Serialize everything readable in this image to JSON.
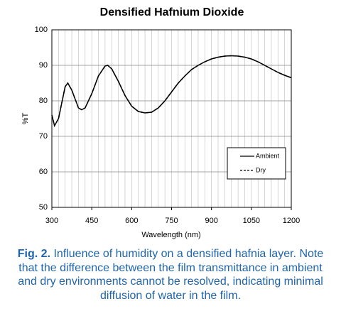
{
  "chart_data": {
    "type": "line",
    "title": "Densified Hafnium Dioxide",
    "x_label": "Wavelength (nm)",
    "y_label": "%T",
    "x": [
      300,
      310,
      325,
      350,
      360,
      375,
      400,
      412,
      425,
      450,
      475,
      500,
      510,
      525,
      550,
      575,
      600,
      625,
      650,
      675,
      700,
      725,
      750,
      775,
      800,
      825,
      850,
      875,
      900,
      925,
      950,
      975,
      1000,
      1025,
      1050,
      1075,
      1100,
      1125,
      1150,
      1175,
      1200
    ],
    "series": [
      {
        "name": "Ambient",
        "color": "#000000",
        "dash": false,
        "values": [
          76,
          73,
          75,
          84,
          85,
          83,
          78,
          77.5,
          78,
          82,
          87,
          89.8,
          90,
          89,
          85.5,
          81.5,
          78.5,
          77,
          76.6,
          76.8,
          78,
          80,
          82.5,
          85,
          87,
          88.8,
          90,
          91,
          91.8,
          92.3,
          92.6,
          92.7,
          92.6,
          92.3,
          91.8,
          91,
          90,
          89,
          88,
          87.2,
          86.5
        ]
      },
      {
        "name": "Dry",
        "color": "#000000",
        "dash": true,
        "values": [
          76,
          73,
          75,
          84,
          85,
          83,
          78,
          77.5,
          78,
          82,
          87,
          89.8,
          90,
          89,
          85.5,
          81.5,
          78.5,
          77,
          76.6,
          76.8,
          78,
          80,
          82.5,
          85,
          87,
          88.8,
          90,
          91,
          91.8,
          92.3,
          92.6,
          92.7,
          92.6,
          92.3,
          91.8,
          91,
          90,
          89,
          88,
          87.2,
          86.5
        ]
      }
    ],
    "xlim": [
      300,
      1200
    ],
    "xticks": [
      300,
      450,
      600,
      750,
      900,
      1050,
      1200
    ],
    "x_minor_grid": 25,
    "ylim": [
      50,
      100
    ],
    "yticks": [
      50,
      60,
      70,
      80,
      90,
      100
    ],
    "grid": true,
    "legend": "lower right"
  },
  "caption": {
    "label": "Fig. 2.",
    "text": "Influence of humidity on a densified hafnia layer. Note that the difference between the film transmittance in ambient and dry environments cannot be resolved, indicating minimal diffusion of water in the film."
  }
}
